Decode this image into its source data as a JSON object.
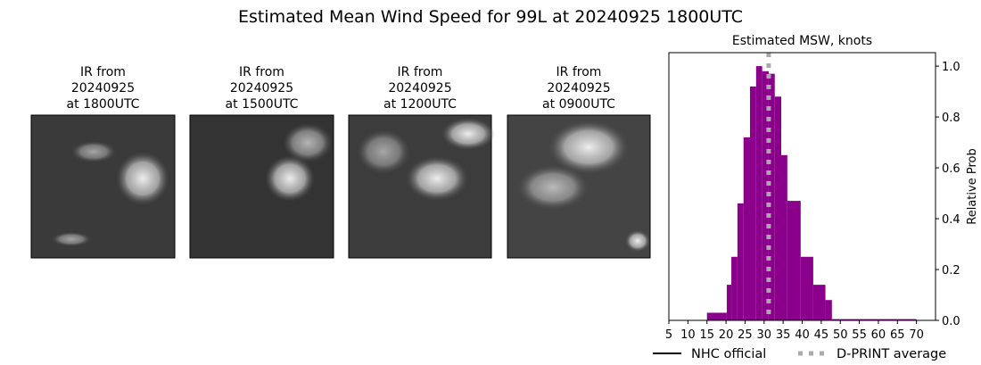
{
  "title": "Estimated Mean Wind Speed for 99L at 20240925 1800UTC",
  "panels": [
    {
      "line1": "IR from",
      "date": "20240925",
      "time": "at 1800UTC"
    },
    {
      "line1": "IR from",
      "date": "20240925",
      "time": "at 1500UTC"
    },
    {
      "line1": "IR from",
      "date": "20240925",
      "time": "at 1200UTC"
    },
    {
      "line1": "IR from",
      "date": "20240925",
      "time": "at 0900UTC"
    }
  ],
  "chart_data": {
    "type": "histogram",
    "title": "Estimated MSW, knots",
    "y_label": "Relative Prob",
    "color": "#8b008b",
    "bins": [
      15,
      20.2,
      21.4,
      23,
      24.6,
      26.3,
      27.9,
      29.5,
      31.2,
      32.8,
      34.5,
      36.1,
      39.6,
      42.9,
      46.1,
      47.8,
      70
    ],
    "values": [
      0.03,
      0.14,
      0.25,
      0.46,
      0.72,
      0.92,
      1.0,
      0.98,
      0.97,
      0.88,
      0.65,
      0.47,
      0.25,
      0.14,
      0.08,
      0.005
    ],
    "xlim": [
      5,
      75
    ],
    "xticks": [
      5,
      10,
      15,
      20,
      25,
      30,
      35,
      40,
      45,
      50,
      55,
      60,
      65,
      70
    ],
    "ylim": [
      0,
      1.053
    ],
    "yticks": [
      {
        "value": 0,
        "label": "0.0"
      },
      0.2,
      0.4,
      0.6,
      0.8,
      {
        "value": 1,
        "label": "1.0"
      }
    ],
    "y_axis_side": "right",
    "legend": [
      {
        "name": "NHC official",
        "color": "#000000",
        "style": "solid"
      },
      {
        "name": "D-PRINT average",
        "color": "#aaaaaa",
        "style": "dotted",
        "value": 31.2
      }
    ]
  }
}
